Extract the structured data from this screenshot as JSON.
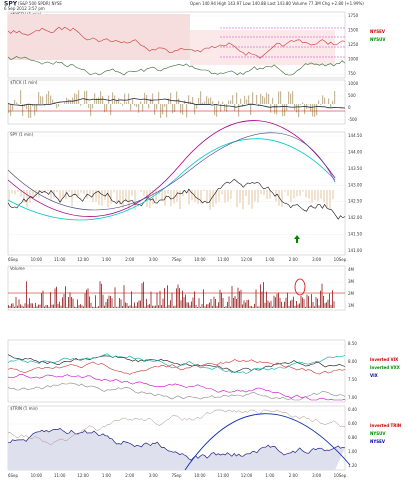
{
  "header": {
    "symbol": "SPY",
    "description": "(S&P 500 SPDR) NYSE",
    "date": "6 Sep 2012 3:57 pm",
    "quote": "Open 140.94 High 143.97 Low 140.88 Last 143.80 Volume 77.3M Chg +2.80 (+1.99%)",
    "study": "$NYSEV (1 min)"
  },
  "panels": [
    {
      "label": "$NYSEV (1 min)",
      "right_labels": [
        "NYSEV",
        "NYSUV"
      ],
      "axis": [
        "1750",
        "1500",
        "1250",
        "1000",
        "750"
      ]
    },
    {
      "label": "$TICK (1 min)",
      "right_labels": [],
      "axis": [
        "1000",
        "500",
        "0",
        "-500"
      ]
    },
    {
      "label": "SPY (1 min)",
      "right_labels": [],
      "axis": [
        "144.50",
        "144.00",
        "143.50",
        "143.00",
        "142.50",
        "142.00",
        "141.50",
        "141.00"
      ]
    },
    {
      "label": "Volume",
      "right_labels": [],
      "axis": [
        "4M",
        "3M",
        "2M",
        "1M"
      ]
    },
    {
      "label": "",
      "right_labels": [
        "Inverted VIX",
        "Inverted VXX",
        "VIX"
      ],
      "axis": [
        "8.50",
        "8.00",
        "7.50",
        "7.00"
      ]
    },
    {
      "label": "$TRIN (1 min)",
      "right_labels": [
        "Inverted TRIN",
        "NYSUV",
        "NYSEV"
      ],
      "axis": [
        "0.40",
        "0.60",
        "0.80",
        "1.00",
        "1.20"
      ]
    }
  ],
  "time_axis": [
    "6Sep",
    "10:00",
    "11:00",
    "12:00",
    "1:00",
    "2:00",
    "3:00",
    "7Sep",
    "10:00",
    "11:00",
    "12:00",
    "1:00",
    "2:00",
    "3:00",
    "10Sep"
  ]
}
